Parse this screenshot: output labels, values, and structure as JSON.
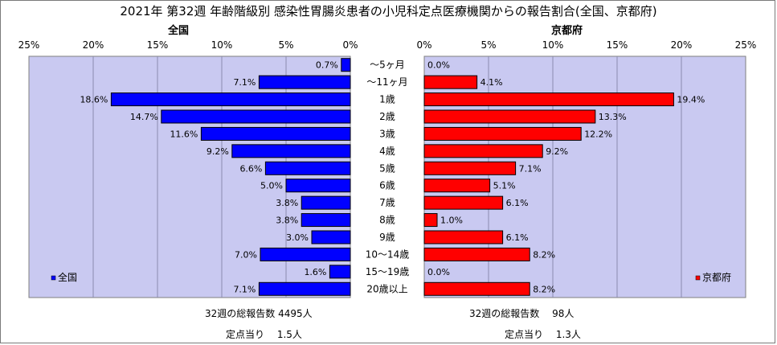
{
  "title": "2021年 第32週 年齢階級別 感染性胃腸炎患者の小児科定点医療機関からの報告割合(全国、京都府)",
  "footer": {
    "national_reports": "32週の総報告数 4495人",
    "national_per_site": "定点当り　 1.5人",
    "kyoto_reports": "32週の総報告数　 98人",
    "kyoto_per_site": "定点当り　 1.3人"
  },
  "chart_data": [
    {
      "type": "bar",
      "orientation": "horizontal",
      "title": "全国",
      "legend": "全国",
      "legend_position": "bottom-left",
      "color": "#0000ff",
      "xlim": [
        25,
        0
      ],
      "ticks": [
        "25%",
        "20%",
        "15%",
        "10%",
        "5%",
        "0%"
      ],
      "grid": true,
      "categories": [
        "～5ヶ月",
        "～11ヶ月",
        "1歳",
        "2歳",
        "3歳",
        "4歳",
        "5歳",
        "6歳",
        "7歳",
        "8歳",
        "9歳",
        "10～14歳",
        "15～19歳",
        "20歳以上"
      ],
      "values": [
        0.7,
        7.1,
        18.6,
        14.7,
        11.6,
        9.2,
        6.6,
        5.0,
        3.8,
        3.8,
        3.0,
        7.0,
        1.6,
        7.1
      ],
      "labels": [
        "0.7%",
        "7.1%",
        "18.6%",
        "14.7%",
        "11.6%",
        "9.2%",
        "6.6%",
        "5.0%",
        "3.8%",
        "3.8%",
        "3.0%",
        "7.0%",
        "1.6%",
        "7.1%"
      ]
    },
    {
      "type": "bar",
      "orientation": "horizontal",
      "title": "京都府",
      "legend": "京都府",
      "legend_position": "bottom-right",
      "color": "#ff0000",
      "xlim": [
        0,
        25
      ],
      "ticks": [
        "0%",
        "5%",
        "10%",
        "15%",
        "20%",
        "25%"
      ],
      "grid": true,
      "categories": [
        "～5ヶ月",
        "～11ヶ月",
        "1歳",
        "2歳",
        "3歳",
        "4歳",
        "5歳",
        "6歳",
        "7歳",
        "8歳",
        "9歳",
        "10～14歳",
        "15～19歳",
        "20歳以上"
      ],
      "values": [
        0.0,
        4.1,
        19.4,
        13.3,
        12.2,
        9.2,
        7.1,
        5.1,
        6.1,
        1.0,
        6.1,
        8.2,
        0.0,
        8.2
      ],
      "labels": [
        "0.0%",
        "4.1%",
        "19.4%",
        "13.3%",
        "12.2%",
        "9.2%",
        "7.1%",
        "5.1%",
        "6.1%",
        "1.0%",
        "6.1%",
        "8.2%",
        "0.0%",
        "8.2%"
      ]
    }
  ]
}
